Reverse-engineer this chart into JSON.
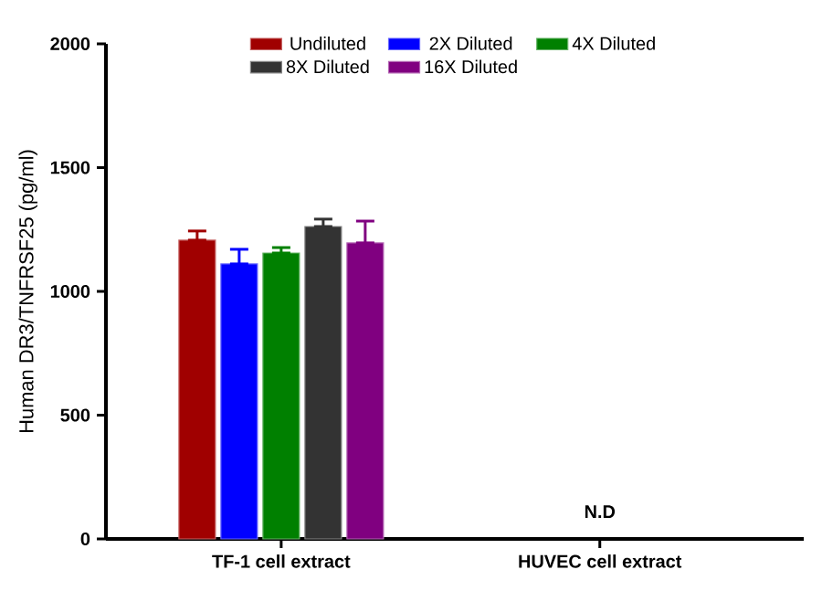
{
  "chart_data": {
    "type": "bar",
    "ylabel": "Human DR3/TNFRSF25 (pg/ml)",
    "categories": [
      "TF-1 cell extract",
      "HUVEC cell extract"
    ],
    "series": [
      {
        "name": "Undiluted",
        "color": "#a00000",
        "values": [
          1207,
          null
        ],
        "errors": [
          [
            1207,
            1244
          ],
          null
        ]
      },
      {
        "name": "2X Diluted",
        "color": "#0000ff",
        "values": [
          1111,
          null
        ],
        "errors": [
          [
            1111,
            1170
          ],
          null
        ]
      },
      {
        "name": "4X Diluted",
        "color": "#008000",
        "values": [
          1155,
          null
        ],
        "errors": [
          [
            1155,
            1177
          ],
          null
        ]
      },
      {
        "name": "8X Diluted",
        "color": "#333333",
        "values": [
          1262,
          null
        ],
        "errors": [
          [
            1262,
            1292
          ],
          null
        ]
      },
      {
        "name": "16X Diluted",
        "color": "#800080",
        "values": [
          1196,
          null
        ],
        "errors": [
          [
            1196,
            1284
          ],
          null
        ]
      }
    ],
    "ylim": [
      0,
      2000
    ],
    "yticks": [
      0,
      500,
      1000,
      1500,
      2000
    ],
    "legend": "top",
    "grid": false,
    "annotations": [
      "N.D"
    ]
  }
}
